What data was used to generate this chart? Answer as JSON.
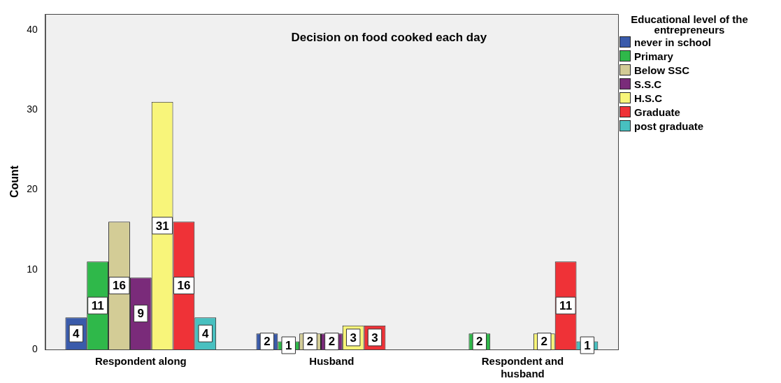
{
  "chart_data": {
    "type": "bar",
    "title": "Decision on food cooked each day",
    "ylabel": "Count",
    "legend_title": "Educational level of the entrepreneurs",
    "categories": [
      "Respondent along",
      "Husband",
      "Respondent and husband"
    ],
    "series": [
      {
        "name": "never in school",
        "color": "#3a5bab",
        "values": [
          4,
          2,
          null
        ]
      },
      {
        "name": "Primary",
        "color": "#2fb84a",
        "values": [
          11,
          1,
          2
        ]
      },
      {
        "name": "Below SSC",
        "color": "#d3cc96",
        "values": [
          16,
          2,
          null
        ]
      },
      {
        "name": "S.S.C",
        "color": "#7a2b7a",
        "values": [
          9,
          2,
          null
        ]
      },
      {
        "name": "H.S.C",
        "color": "#f8f57a",
        "values": [
          31,
          3,
          2
        ]
      },
      {
        "name": "Graduate",
        "color": "#ef3237",
        "values": [
          16,
          3,
          11
        ]
      },
      {
        "name": "post graduate",
        "color": "#48c0c0",
        "values": [
          4,
          null,
          1
        ]
      }
    ],
    "ylim": [
      0,
      42
    ],
    "yticks": [
      0,
      10,
      20,
      30,
      40
    ],
    "grid": false,
    "legend": "top right",
    "data_labels": true
  }
}
